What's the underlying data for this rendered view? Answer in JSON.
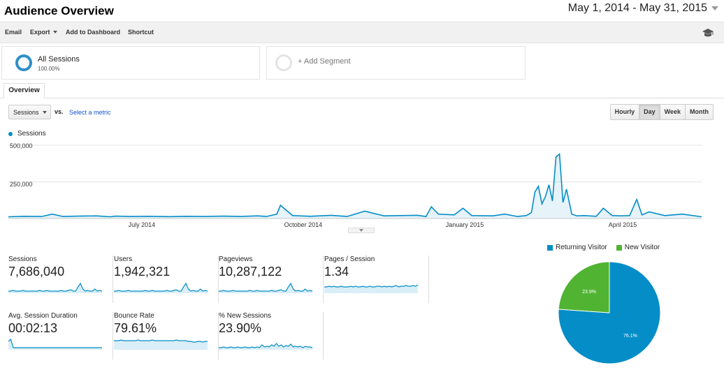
{
  "header": {
    "title": "Audience Overview",
    "date_range": "May 1, 2014 - May 31, 2015"
  },
  "toolbar": {
    "email": "Email",
    "export": "Export",
    "add_to_dashboard": "Add to Dashboard",
    "shortcut": "Shortcut"
  },
  "segments": {
    "all_name": "All Sessions",
    "all_pct": "100.00%",
    "add_label": "+ Add Segment"
  },
  "tabs": {
    "overview": "Overview"
  },
  "controls": {
    "metric_select": "Sessions",
    "vs": "vs.",
    "select_metric": "Select a metric",
    "granularity": [
      "Hourly",
      "Day",
      "Week",
      "Month"
    ],
    "active_granularity": "Day"
  },
  "colors": {
    "series": "#058dc7",
    "returning": "#058dc7",
    "new": "#50b432"
  },
  "chart_data": [
    {
      "type": "line",
      "series": [
        {
          "name": "Sessions",
          "x": [
            "2014-05-01",
            "2014-05-10",
            "2014-05-20",
            "2014-05-26",
            "2014-06-01",
            "2014-06-10",
            "2014-06-20",
            "2014-06-28",
            "2014-07-01",
            "2014-07-10",
            "2014-07-20",
            "2014-08-01",
            "2014-08-10",
            "2014-08-20",
            "2014-09-01",
            "2014-09-10",
            "2014-09-20",
            "2014-09-25",
            "2014-10-01",
            "2014-10-03",
            "2014-10-10",
            "2014-10-20",
            "2014-11-01",
            "2014-11-10",
            "2014-11-20",
            "2014-12-01",
            "2014-12-10",
            "2014-12-20",
            "2014-12-25",
            "2014-12-28",
            "2015-01-01",
            "2015-01-10",
            "2015-01-15",
            "2015-01-20",
            "2015-02-01",
            "2015-02-08",
            "2015-02-15",
            "2015-02-20",
            "2015-02-23",
            "2015-02-25",
            "2015-02-27",
            "2015-03-01",
            "2015-03-03",
            "2015-03-05",
            "2015-03-07",
            "2015-03-09",
            "2015-03-11",
            "2015-03-13",
            "2015-03-15",
            "2015-03-18",
            "2015-03-21",
            "2015-03-25",
            "2015-04-01",
            "2015-04-05",
            "2015-04-10",
            "2015-04-15",
            "2015-04-20",
            "2015-04-24",
            "2015-04-27",
            "2015-05-01",
            "2015-05-10",
            "2015-05-20",
            "2015-05-31"
          ],
          "values": [
            12000,
            15000,
            14000,
            30000,
            14000,
            16000,
            18000,
            12000,
            16000,
            14000,
            15000,
            13000,
            15000,
            14000,
            16000,
            14000,
            18000,
            14000,
            30000,
            90000,
            20000,
            15000,
            22000,
            14000,
            50000,
            18000,
            20000,
            22000,
            14000,
            80000,
            30000,
            25000,
            70000,
            20000,
            18000,
            30000,
            14000,
            20000,
            40000,
            180000,
            220000,
            100000,
            150000,
            230000,
            120000,
            420000,
            440000,
            110000,
            200000,
            30000,
            18000,
            20000,
            15000,
            70000,
            20000,
            18000,
            20000,
            130000,
            25000,
            45000,
            20000,
            30000,
            12000
          ]
        }
      ],
      "yticks": [
        "500,000",
        "250,000"
      ],
      "ylim": [
        0,
        500000
      ],
      "xticks": [
        "July 2014",
        "October 2014",
        "January 2015",
        "April 2015"
      ],
      "legend": "top-left"
    },
    {
      "type": "pie",
      "categories": [
        "Returning Visitor",
        "New Visitor"
      ],
      "values": [
        76.1,
        23.9
      ],
      "labels": [
        "76.1%",
        "23.9%"
      ],
      "legend": "top"
    }
  ],
  "metrics": [
    {
      "name": "Sessions",
      "value": "7,686,040",
      "spark": [
        3,
        3,
        4,
        3,
        3,
        3,
        4,
        3,
        3,
        3,
        3,
        3,
        3,
        4,
        3,
        3,
        4,
        3,
        3,
        3,
        3,
        3,
        4,
        3,
        3,
        4,
        5,
        3,
        3,
        9,
        14,
        6,
        3,
        4,
        3,
        3,
        6,
        3,
        4,
        3
      ]
    },
    {
      "name": "Users",
      "value": "1,942,321",
      "spark": [
        3,
        3,
        4,
        3,
        3,
        3,
        4,
        3,
        3,
        3,
        3,
        3,
        3,
        4,
        3,
        3,
        4,
        3,
        3,
        3,
        3,
        3,
        4,
        3,
        3,
        4,
        5,
        3,
        3,
        9,
        14,
        6,
        3,
        4,
        3,
        3,
        6,
        3,
        4,
        3
      ]
    },
    {
      "name": "Pageviews",
      "value": "10,287,122",
      "spark": [
        3,
        3,
        4,
        3,
        3,
        3,
        4,
        3,
        3,
        3,
        3,
        3,
        3,
        4,
        3,
        3,
        4,
        3,
        3,
        3,
        3,
        3,
        4,
        3,
        3,
        4,
        5,
        3,
        3,
        9,
        14,
        6,
        3,
        4,
        3,
        3,
        6,
        3,
        4,
        3
      ]
    },
    {
      "name": "Pages / Session",
      "value": "1.34",
      "spark": [
        9,
        9,
        10,
        9,
        10,
        9,
        9,
        10,
        9,
        9,
        9,
        10,
        9,
        10,
        9,
        9,
        10,
        9,
        9,
        10,
        9,
        9,
        10,
        10,
        9,
        10,
        9,
        10,
        9,
        10,
        11,
        9,
        10,
        10,
        11,
        10,
        10,
        11,
        10,
        12
      ]
    },
    {
      "name": "Avg. Session Duration",
      "value": "00:02:13",
      "spark": [
        12,
        15,
        3,
        3,
        3,
        3,
        3,
        3,
        3,
        3,
        3,
        3,
        3,
        3,
        3,
        3,
        3,
        3,
        3,
        3,
        3,
        3,
        3,
        3,
        3,
        3,
        3,
        3,
        3,
        3,
        3,
        3,
        3,
        3,
        3,
        3,
        3,
        3,
        3,
        3
      ]
    },
    {
      "name": "Bounce Rate",
      "value": "79.61%",
      "spark": [
        13,
        13,
        13,
        14,
        13,
        13,
        13,
        13,
        13,
        13,
        14,
        13,
        13,
        13,
        13,
        13,
        14,
        13,
        13,
        13,
        13,
        13,
        13,
        13,
        13,
        13,
        14,
        13,
        13,
        13,
        13,
        12,
        12,
        11,
        11,
        12,
        12,
        11,
        12,
        12
      ]
    },
    {
      "name": "% New Sessions",
      "value": "23.90%",
      "spark": [
        3,
        3,
        4,
        3,
        3,
        4,
        3,
        3,
        4,
        3,
        3,
        4,
        3,
        3,
        4,
        3,
        4,
        3,
        7,
        4,
        5,
        4,
        7,
        5,
        9,
        5,
        7,
        4,
        6,
        5,
        8,
        4,
        5,
        4,
        5,
        3,
        5,
        4,
        4,
        3
      ]
    }
  ]
}
